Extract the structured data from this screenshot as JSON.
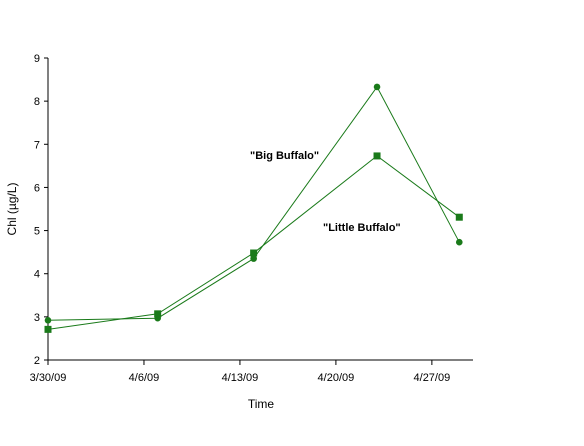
{
  "chart_data": {
    "type": "line",
    "title": "",
    "xlabel": "Time",
    "ylabel": "Chl (µg/L)",
    "x_ticks": [
      "3/30/09",
      "4/6/09",
      "4/13/09",
      "4/20/09",
      "4/27/09"
    ],
    "xlim": [
      "2009-03-30",
      "2009-04-30"
    ],
    "ylim": [
      2,
      9
    ],
    "y_ticks": [
      2,
      3,
      4,
      5,
      6,
      7,
      8,
      9
    ],
    "grid": false,
    "legend": "none",
    "series": [
      {
        "name": "\"Big Buffalo\"",
        "marker": "circle",
        "color": "#1a7a1a",
        "x": [
          "2009-03-30",
          "2009-04-07",
          "2009-04-14",
          "2009-04-23",
          "2009-04-29"
        ],
        "y": [
          2.92,
          2.97,
          4.35,
          8.33,
          4.73
        ]
      },
      {
        "name": "\"Little Buffalo\"",
        "marker": "square",
        "color": "#1a7a1a",
        "x": [
          "2009-03-30",
          "2009-04-07",
          "2009-04-14",
          "2009-04-23",
          "2009-04-29"
        ],
        "y": [
          2.71,
          3.07,
          4.48,
          6.73,
          5.31
        ]
      }
    ],
    "annotations": [
      "\"Big Buffalo\"",
      "\"Little Buffalo\""
    ]
  }
}
